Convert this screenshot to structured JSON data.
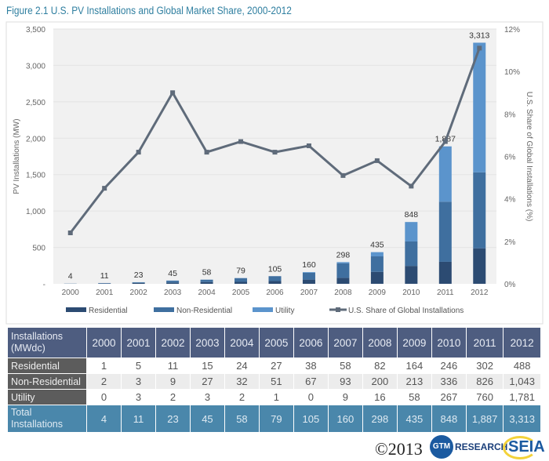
{
  "title": "Figure 2.1  U.S. PV Installations and Global Market Share, 2000-2012",
  "chart_data": {
    "type": "bar",
    "stacked": true,
    "categories": [
      "2000",
      "2001",
      "2002",
      "2003",
      "2004",
      "2005",
      "2006",
      "2007",
      "2008",
      "2009",
      "2010",
      "2011",
      "2012"
    ],
    "series": [
      {
        "name": "Residential",
        "values": [
          1,
          5,
          11,
          15,
          24,
          27,
          38,
          58,
          82,
          164,
          246,
          302,
          488
        ],
        "color": "#2c4b72"
      },
      {
        "name": "Non-Residential",
        "values": [
          2,
          3,
          9,
          27,
          32,
          51,
          67,
          93,
          200,
          213,
          336,
          826,
          1043
        ],
        "color": "#3f6f9f"
      },
      {
        "name": "Utility",
        "values": [
          0,
          3,
          2,
          3,
          2,
          1,
          0,
          9,
          16,
          58,
          267,
          760,
          1781
        ],
        "color": "#5b94cc"
      }
    ],
    "totals": [
      4,
      11,
      23,
      45,
      58,
      79,
      105,
      160,
      298,
      435,
      848,
      1887,
      3313
    ],
    "total_labels": [
      "4",
      "11",
      "23",
      "45",
      "58",
      "79",
      "105",
      "160",
      "298",
      "435",
      "848",
      "1,887",
      "3,313"
    ],
    "line_series": {
      "name": "U.S. Share of Global Installations",
      "axis": "right",
      "unit": "%",
      "values": [
        2.4,
        4.5,
        6.2,
        9.0,
        6.2,
        6.7,
        6.2,
        6.5,
        5.1,
        5.8,
        4.6,
        6.7,
        11.1
      ],
      "color": "#5f6b7a"
    },
    "ylabel": "PV Installations (MW)",
    "ylabel_right": "U.S. Share of Global Installations (%)",
    "ylim": [
      0,
      3500
    ],
    "ylim_right": [
      0,
      12
    ],
    "yticks": [
      "-",
      "500",
      "1,000",
      "1,500",
      "2,000",
      "2,500",
      "3,000",
      "3,500"
    ],
    "yticks_right": [
      "0%",
      "2%",
      "4%",
      "6%",
      "8%",
      "10%",
      "12%"
    ],
    "grid": true,
    "legend_position": "bottom"
  },
  "table": {
    "header_label": [
      "Installations",
      "(MWdc)"
    ],
    "years": [
      "2000",
      "2001",
      "2002",
      "2003",
      "2004",
      "2005",
      "2006",
      "2007",
      "2008",
      "2009",
      "2010",
      "2011",
      "2012"
    ],
    "rows": [
      {
        "label": "Residential",
        "values": [
          "1",
          "5",
          "11",
          "15",
          "24",
          "27",
          "38",
          "58",
          "82",
          "164",
          "246",
          "302",
          "488"
        ]
      },
      {
        "label": "Non-Residential",
        "values": [
          "2",
          "3",
          "9",
          "27",
          "32",
          "51",
          "67",
          "93",
          "200",
          "213",
          "336",
          "826",
          "1,043"
        ]
      },
      {
        "label": "Utility",
        "values": [
          "0",
          "3",
          "2",
          "3",
          "2",
          "1",
          "0",
          "9",
          "16",
          "58",
          "267",
          "760",
          "1,781"
        ]
      }
    ],
    "total": {
      "label": [
        "Total",
        "Installations"
      ],
      "values": [
        "4",
        "11",
        "23",
        "45",
        "58",
        "79",
        "105",
        "160",
        "298",
        "435",
        "848",
        "1,887",
        "3,313"
      ]
    }
  },
  "footer": {
    "copyright": "©2013",
    "logo_gtm": "GTM",
    "logo_gtm_text": "RESEARCH",
    "logo_seia": "SEIA"
  }
}
